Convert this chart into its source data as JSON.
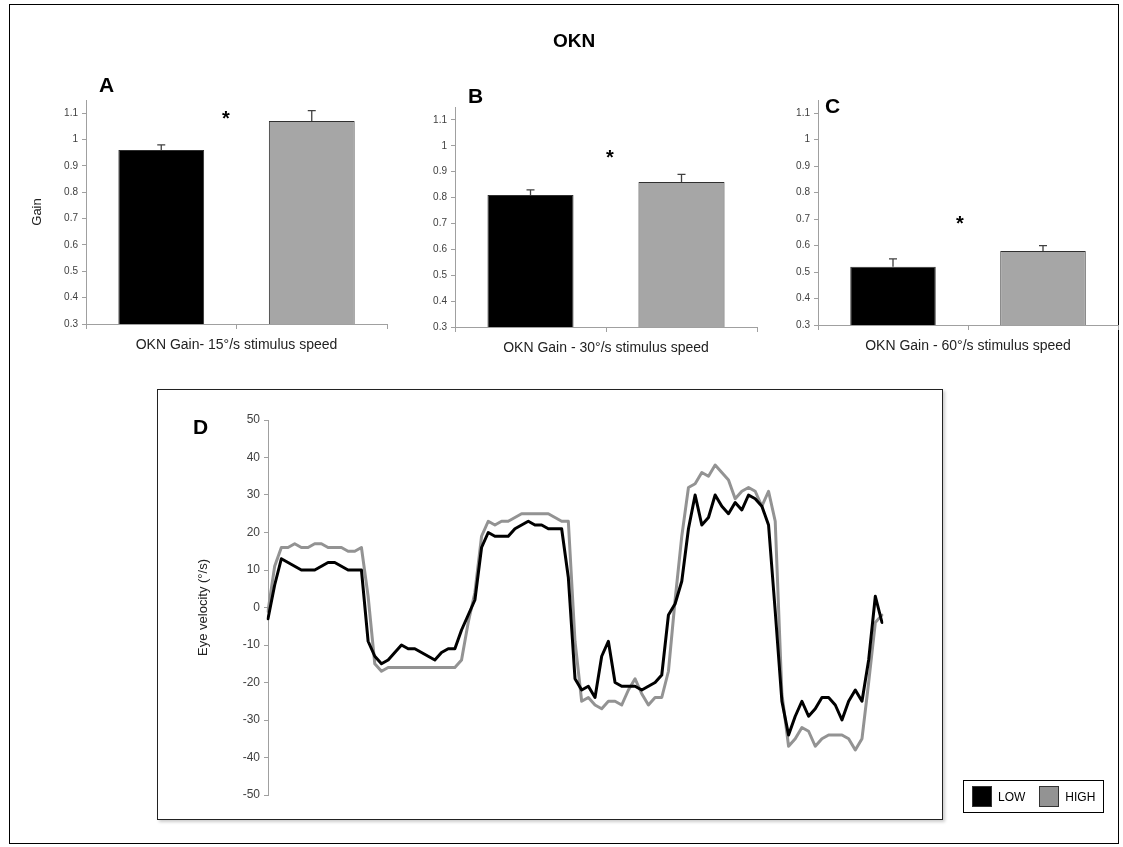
{
  "chart_data": [
    {
      "type": "bar",
      "ylabel": "Gain",
      "xlabel": "OKN Gain- 15°/s stimulus speed",
      "categories": [
        null,
        null
      ],
      "values": [
        0.96,
        1.07
      ],
      "colors": [
        "#000000",
        "#a6a6a6"
      ],
      "errors": [
        [
          0.96,
          0.98
        ],
        [
          1.07,
          1.11
        ]
      ],
      "ylim": [
        0.3,
        1.15
      ],
      "yticks": [
        0.3,
        0.4,
        0.5,
        0.6,
        0.7,
        0.8,
        0.9,
        1,
        1.1
      ],
      "tick_labels": "y",
      "annotations": [
        "A",
        "*"
      ]
    },
    {
      "type": "bar",
      "title": "OKN",
      "xlabel": "OKN Gain - 30°/s stimulus speed",
      "categories": [
        null,
        null
      ],
      "values": [
        0.81,
        0.86
      ],
      "colors": [
        "#000000",
        "#a6a6a6"
      ],
      "errors": [
        [
          0.81,
          0.83
        ],
        [
          0.86,
          0.89
        ]
      ],
      "ylim": [
        0.3,
        1.15
      ],
      "yticks": [
        0.3,
        0.4,
        0.5,
        0.6,
        0.7,
        0.8,
        0.9,
        1,
        1.1
      ],
      "tick_labels": "y",
      "annotations": [
        "B",
        "*"
      ]
    },
    {
      "type": "bar",
      "xlabel": "OKN Gain - 60°/s stimulus speed",
      "categories": [
        null,
        null
      ],
      "values": [
        0.52,
        0.58
      ],
      "colors": [
        "#000000",
        "#a6a6a6"
      ],
      "errors": [
        [
          0.52,
          0.55
        ],
        [
          0.58,
          0.6
        ]
      ],
      "ylim": [
        0.3,
        1.15
      ],
      "yticks": [
        0.3,
        0.4,
        0.5,
        0.6,
        0.7,
        0.8,
        0.9,
        1,
        1.1
      ],
      "tick_labels": "y",
      "annotations": [
        "C",
        "*"
      ]
    },
    {
      "type": "line",
      "ylabel": "Eye velocity (°/s)",
      "categories": [
        null,
        null,
        null,
        null,
        null,
        null,
        null,
        null,
        null,
        null,
        null,
        null,
        null,
        null,
        null,
        null,
        null,
        null,
        null,
        null,
        null,
        null,
        null,
        null,
        null,
        null,
        null,
        null,
        null,
        null,
        null,
        null,
        null,
        null,
        null,
        null,
        null,
        null,
        null,
        null,
        null,
        null,
        null,
        null,
        null,
        null,
        null,
        null,
        null,
        null,
        null,
        null,
        null,
        null,
        null,
        null,
        null,
        null,
        null,
        null,
        null,
        null,
        null,
        null,
        null,
        null,
        null,
        null,
        null,
        null,
        null,
        null,
        null,
        null,
        null,
        null,
        null,
        null,
        null,
        null,
        null,
        null,
        null,
        null,
        null,
        null,
        null,
        null,
        null,
        null,
        null,
        null,
        null
      ],
      "series": [
        {
          "name": "LOW",
          "color": "#000000",
          "values": [
            -3,
            6,
            13,
            12,
            11,
            10,
            10,
            10,
            11,
            12,
            12,
            11,
            10,
            10,
            10,
            -9,
            -13,
            -15,
            -14,
            -12,
            -10,
            -11,
            -11,
            -12,
            -13,
            -14,
            -12,
            -11,
            -11,
            -6,
            -2,
            2,
            16,
            20,
            19,
            19,
            19,
            21,
            22,
            23,
            22,
            22,
            21,
            21,
            21,
            8,
            -19,
            -22,
            -21,
            -24,
            -13,
            -9,
            -20,
            -21,
            -21,
            -21,
            -22,
            -21,
            -20,
            -18,
            -2,
            1,
            7,
            21,
            30,
            22,
            24,
            30,
            27,
            25,
            28,
            26,
            30,
            29,
            27,
            22,
            -1,
            -25,
            -34,
            -29,
            -25,
            -29,
            -27,
            -24,
            -24,
            -26,
            -30,
            -25,
            -22,
            -25,
            -14,
            3,
            -4
          ]
        },
        {
          "name": "HIGH",
          "color": "#939393",
          "values": [
            -1,
            11,
            16,
            16,
            17,
            16,
            16,
            17,
            17,
            16,
            16,
            16,
            15,
            15,
            16,
            3,
            -15,
            -17,
            -16,
            -16,
            -16,
            -16,
            -16,
            -16,
            -16,
            -16,
            -16,
            -16,
            -16,
            -14,
            -4,
            4,
            19,
            23,
            22,
            23,
            23,
            24,
            25,
            25,
            25,
            25,
            25,
            24,
            23,
            23,
            -9,
            -25,
            -24,
            -26,
            -27,
            -25,
            -25,
            -26,
            -22,
            -19,
            -23,
            -26,
            -24,
            -24,
            -17,
            2,
            19,
            32,
            33,
            36,
            35,
            38,
            36,
            34,
            29,
            31,
            32,
            31,
            27,
            31,
            23,
            -23,
            -37,
            -35,
            -32,
            -33,
            -37,
            -35,
            -34,
            -34,
            -34,
            -35,
            -38,
            -35,
            -20,
            -4,
            -2
          ]
        }
      ],
      "ylim": [
        -50,
        50
      ],
      "yticks": [
        -50,
        -40,
        -30,
        -20,
        -10,
        0,
        10,
        20,
        30,
        40,
        50
      ],
      "tick_labels": "y",
      "legend": "bottom right",
      "marker": "none",
      "line_style": "solid",
      "annotations": [
        "D"
      ]
    }
  ]
}
